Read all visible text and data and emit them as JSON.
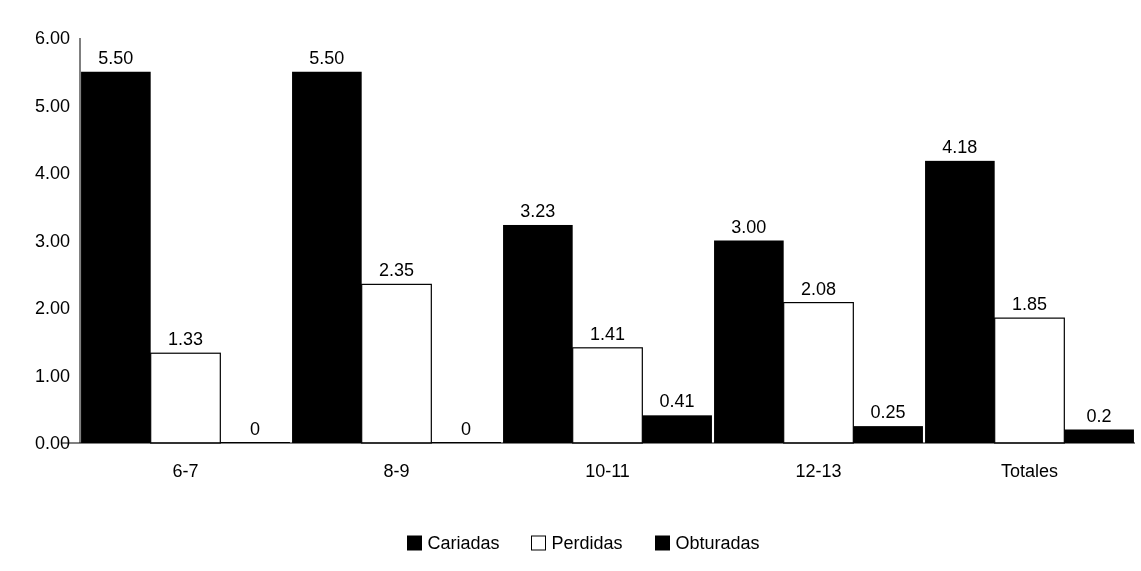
{
  "chart_data": {
    "type": "bar",
    "categories": [
      "6-7",
      "8-9",
      "10-11",
      "12-13",
      "Totales"
    ],
    "series": [
      {
        "name": "Cariadas",
        "color": "#000000",
        "values": [
          5.5,
          5.5,
          3.23,
          3.0,
          4.18
        ],
        "value_labels": [
          "5.50",
          "5.50",
          "3.23",
          "3.00",
          "4.18"
        ]
      },
      {
        "name": "Perdidas",
        "color": "#ffffff",
        "values": [
          1.33,
          2.35,
          1.41,
          2.08,
          1.85
        ],
        "value_labels": [
          "1.33",
          "2.35",
          "1.41",
          "2.08",
          "1.85"
        ]
      },
      {
        "name": "Obturadas",
        "color": "#000000",
        "values": [
          0,
          0,
          0.41,
          0.25,
          0.2
        ],
        "value_labels": [
          "0",
          "0",
          "0.41",
          "0.25",
          "0.2"
        ]
      }
    ],
    "ylim": [
      0,
      6
    ],
    "yticks": [
      {
        "value": 0,
        "label": "0.00"
      },
      {
        "value": 1,
        "label": "1.00"
      },
      {
        "value": 2,
        "label": "2.00"
      },
      {
        "value": 3,
        "label": "3.00"
      },
      {
        "value": 4,
        "label": "4.00"
      },
      {
        "value": 5,
        "label": "5.00"
      },
      {
        "value": 6,
        "label": "6.00"
      }
    ],
    "grid": false,
    "legend": "bottom"
  }
}
